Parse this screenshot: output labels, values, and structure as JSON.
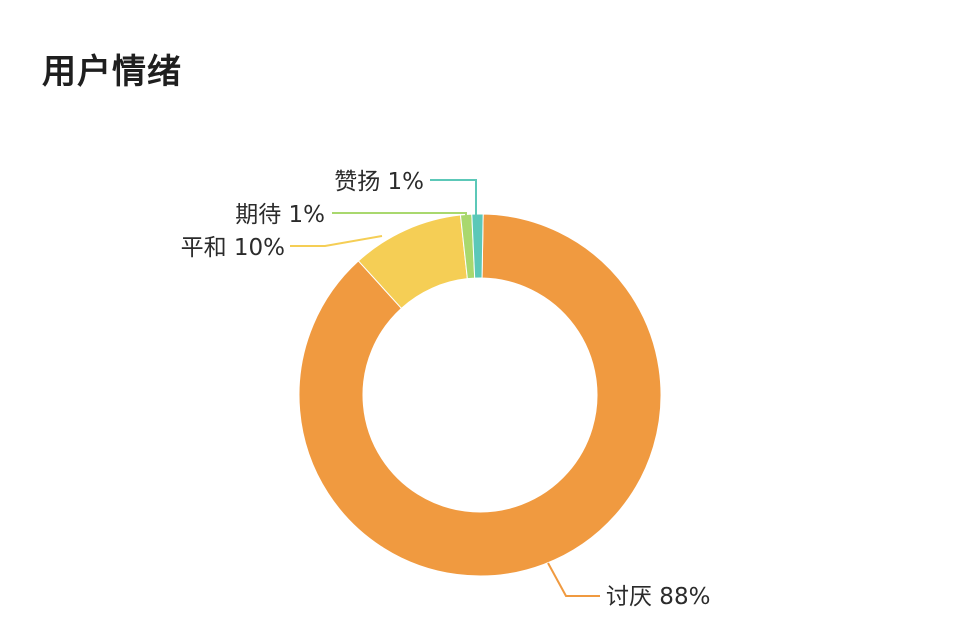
{
  "title": "用户情绪",
  "chart_data": {
    "type": "pie",
    "donut": true,
    "unit": "%",
    "slices": [
      {
        "label": "讨厌",
        "value": 88,
        "color": "#F09A40"
      },
      {
        "label": "平和",
        "value": 10,
        "color": "#F5CE55"
      },
      {
        "label": "期待",
        "value": 1,
        "color": "#A9D86E"
      },
      {
        "label": "赞扬",
        "value": 1,
        "color": "#5CC8B8"
      }
    ]
  }
}
